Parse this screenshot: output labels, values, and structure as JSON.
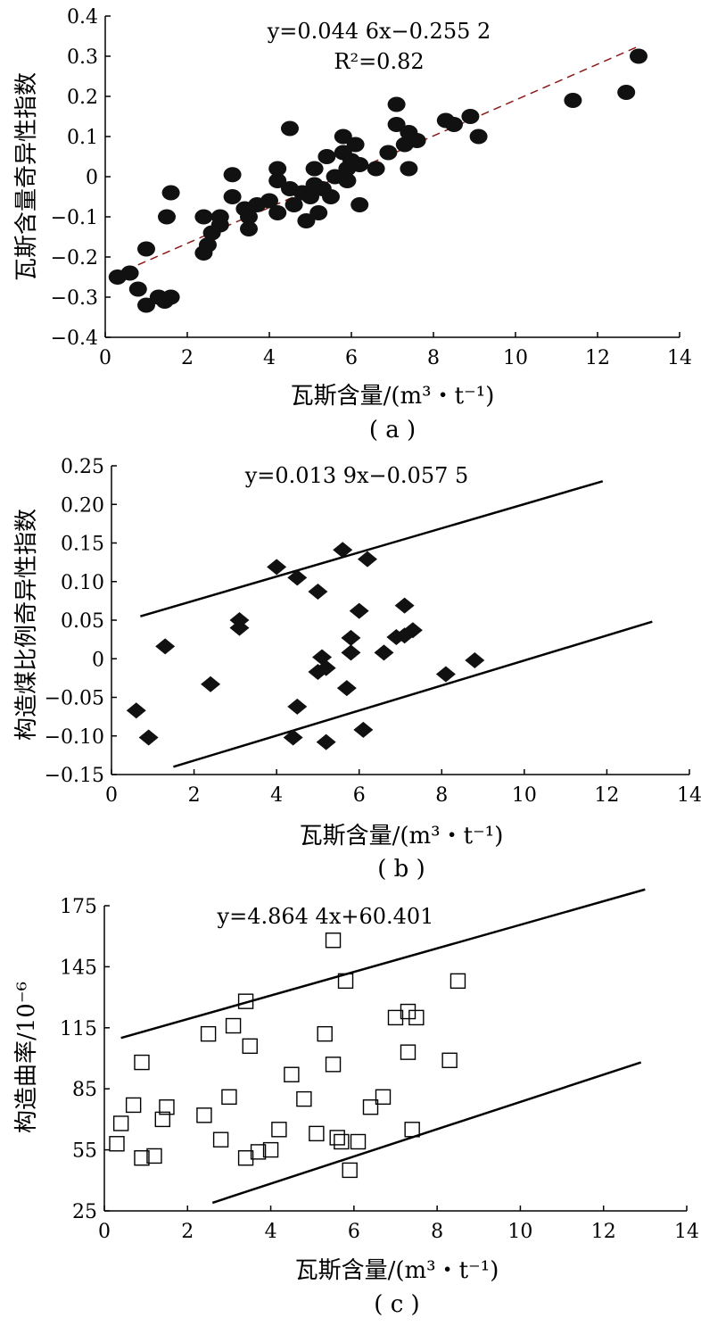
{
  "chart_data": [
    {
      "id": "a",
      "type": "scatter",
      "panel_label": "( a )",
      "xlabel": "瓦斯含量/(m³・t⁻¹)",
      "ylabel": "瓦斯含量奇异性指数",
      "xlim": [
        0,
        14
      ],
      "ylim": [
        -0.4,
        0.4
      ],
      "xticks": [
        0,
        2,
        4,
        6,
        8,
        10,
        12,
        14
      ],
      "yticks": [
        -0.4,
        -0.3,
        -0.2,
        -0.1,
        0,
        0.1,
        0.2,
        0.3,
        0.4
      ],
      "ytick_labels": [
        "−0.4",
        "−0.3",
        "−0.2",
        "−0.1",
        "0",
        "0.1",
        "0.2",
        "0.3",
        "0.4"
      ],
      "marker": "filled-ellipse",
      "equation": "y=0.044 6x−0.255 2",
      "r2": "R²=0.82",
      "fit_line": {
        "style": "dashed",
        "color": "#8b1a1a",
        "slope": 0.0446,
        "intercept": -0.2552,
        "x_range": [
          0.8,
          13
        ]
      },
      "points": [
        [
          0.3,
          -0.25
        ],
        [
          0.6,
          -0.24
        ],
        [
          0.8,
          -0.28
        ],
        [
          1.0,
          -0.18
        ],
        [
          1.0,
          -0.32
        ],
        [
          1.3,
          -0.3
        ],
        [
          1.45,
          -0.31
        ],
        [
          1.6,
          -0.3
        ],
        [
          1.5,
          -0.1
        ],
        [
          1.6,
          -0.04
        ],
        [
          2.4,
          -0.19
        ],
        [
          2.4,
          -0.1
        ],
        [
          2.5,
          -0.17
        ],
        [
          2.6,
          -0.14
        ],
        [
          2.8,
          -0.1
        ],
        [
          2.8,
          -0.12
        ],
        [
          3.1,
          0.005
        ],
        [
          3.1,
          -0.05
        ],
        [
          3.4,
          -0.08
        ],
        [
          3.5,
          -0.1
        ],
        [
          3.5,
          -0.13
        ],
        [
          3.7,
          -0.07
        ],
        [
          4.0,
          -0.06
        ],
        [
          4.2,
          -0.09
        ],
        [
          4.2,
          0.02
        ],
        [
          4.2,
          -0.01
        ],
        [
          4.5,
          -0.03
        ],
        [
          4.5,
          0.12
        ],
        [
          4.6,
          -0.07
        ],
        [
          4.8,
          -0.04
        ],
        [
          4.9,
          -0.11
        ],
        [
          5.0,
          -0.05
        ],
        [
          5.1,
          -0.02
        ],
        [
          5.1,
          0.02
        ],
        [
          5.2,
          -0.09
        ],
        [
          5.3,
          -0.03
        ],
        [
          5.4,
          0.05
        ],
        [
          5.5,
          -0.05
        ],
        [
          5.6,
          0.0
        ],
        [
          5.8,
          0.1
        ],
        [
          5.8,
          0.06
        ],
        [
          5.9,
          -0.01
        ],
        [
          5.9,
          0.02
        ],
        [
          6.0,
          0.04
        ],
        [
          6.1,
          0.08
        ],
        [
          6.2,
          -0.07
        ],
        [
          6.2,
          0.03
        ],
        [
          6.6,
          0.02
        ],
        [
          6.9,
          0.06
        ],
        [
          7.1,
          0.18
        ],
        [
          7.1,
          0.13
        ],
        [
          7.3,
          0.08
        ],
        [
          7.4,
          0.11
        ],
        [
          7.4,
          0.02
        ],
        [
          7.6,
          0.09
        ],
        [
          8.3,
          0.14
        ],
        [
          8.5,
          0.13
        ],
        [
          8.9,
          0.15
        ],
        [
          9.1,
          0.1
        ],
        [
          11.4,
          0.19
        ],
        [
          12.7,
          0.21
        ],
        [
          13.0,
          0.3
        ]
      ]
    },
    {
      "id": "b",
      "type": "scatter",
      "panel_label": "( b )",
      "xlabel": "瓦斯含量/(m³・t⁻¹)",
      "ylabel": "构造煤比例奇异性指数",
      "xlim": [
        0,
        14
      ],
      "ylim": [
        -0.15,
        0.25
      ],
      "xticks": [
        0,
        2,
        4,
        6,
        8,
        10,
        12,
        14
      ],
      "yticks": [
        -0.15,
        -0.1,
        -0.05,
        0,
        0.05,
        0.1,
        0.15,
        0.2,
        0.25
      ],
      "ytick_labels": [
        "−0.15",
        "−0.10",
        "−0.05",
        "0",
        "0.05",
        "0.10",
        "0.15",
        "0.20",
        "0.25"
      ],
      "marker": "filled-diamond",
      "equation": "y=0.013 9x−0.057 5",
      "bound_lines": [
        {
          "x": [
            0.7,
            11.9
          ],
          "y": [
            0.055,
            0.23
          ]
        },
        {
          "x": [
            1.5,
            13.1
          ],
          "y": [
            -0.14,
            0.048
          ]
        }
      ],
      "points": [
        [
          0.6,
          -0.067
        ],
        [
          0.9,
          -0.102
        ],
        [
          1.3,
          0.016
        ],
        [
          2.4,
          -0.033
        ],
        [
          3.1,
          0.05
        ],
        [
          3.1,
          0.04
        ],
        [
          4.0,
          0.119
        ],
        [
          4.5,
          0.105
        ],
        [
          4.4,
          -0.102
        ],
        [
          4.5,
          -0.062
        ],
        [
          5.0,
          0.087
        ],
        [
          5.0,
          -0.017
        ],
        [
          5.1,
          0.002
        ],
        [
          5.2,
          -0.012
        ],
        [
          5.2,
          -0.108
        ],
        [
          5.6,
          0.141
        ],
        [
          5.7,
          -0.038
        ],
        [
          5.8,
          0.027
        ],
        [
          5.8,
          0.008
        ],
        [
          6.0,
          0.062
        ],
        [
          6.1,
          -0.092
        ],
        [
          6.2,
          0.129
        ],
        [
          6.6,
          0.008
        ],
        [
          6.9,
          0.028
        ],
        [
          7.1,
          0.069
        ],
        [
          7.1,
          0.03
        ],
        [
          7.3,
          0.037
        ],
        [
          8.1,
          -0.02
        ],
        [
          8.8,
          -0.002
        ]
      ]
    },
    {
      "id": "c",
      "type": "scatter",
      "panel_label": "( c )",
      "xlabel": "瓦斯含量/(m³・t⁻¹)",
      "ylabel": "构造曲率/10⁻⁶",
      "xlim": [
        0,
        14
      ],
      "ylim": [
        25,
        175
      ],
      "xticks": [
        0,
        2,
        4,
        6,
        8,
        10,
        12,
        14
      ],
      "yticks": [
        25,
        55,
        85,
        115,
        145,
        175
      ],
      "ytick_labels": [
        "25",
        "55",
        "85",
        "115",
        "145",
        "175"
      ],
      "marker": "open-square",
      "equation": "y=4.864 4x+60.401",
      "bound_lines": [
        {
          "x": [
            0.4,
            13.0
          ],
          "y": [
            110,
            183
          ]
        },
        {
          "x": [
            2.6,
            12.9
          ],
          "y": [
            29,
            98
          ]
        }
      ],
      "points": [
        [
          0.3,
          58
        ],
        [
          0.4,
          68
        ],
        [
          0.7,
          77
        ],
        [
          0.9,
          98
        ],
        [
          0.9,
          51
        ],
        [
          1.2,
          52
        ],
        [
          1.4,
          70
        ],
        [
          1.5,
          76
        ],
        [
          2.4,
          72
        ],
        [
          2.5,
          112
        ],
        [
          2.8,
          60
        ],
        [
          3.0,
          81
        ],
        [
          3.1,
          116
        ],
        [
          3.4,
          128
        ],
        [
          3.4,
          51
        ],
        [
          3.5,
          106
        ],
        [
          3.7,
          54
        ],
        [
          4.0,
          55
        ],
        [
          4.2,
          65
        ],
        [
          4.5,
          92
        ],
        [
          4.8,
          80
        ],
        [
          5.1,
          63
        ],
        [
          5.3,
          112
        ],
        [
          5.5,
          97
        ],
        [
          5.5,
          158
        ],
        [
          5.6,
          61
        ],
        [
          5.7,
          59
        ],
        [
          5.8,
          138
        ],
        [
          5.9,
          45
        ],
        [
          6.1,
          59
        ],
        [
          6.4,
          76
        ],
        [
          6.7,
          81
        ],
        [
          7.0,
          120
        ],
        [
          7.3,
          123
        ],
        [
          7.3,
          103
        ],
        [
          7.4,
          65
        ],
        [
          7.5,
          120
        ],
        [
          8.3,
          99
        ],
        [
          8.5,
          138
        ]
      ]
    }
  ]
}
